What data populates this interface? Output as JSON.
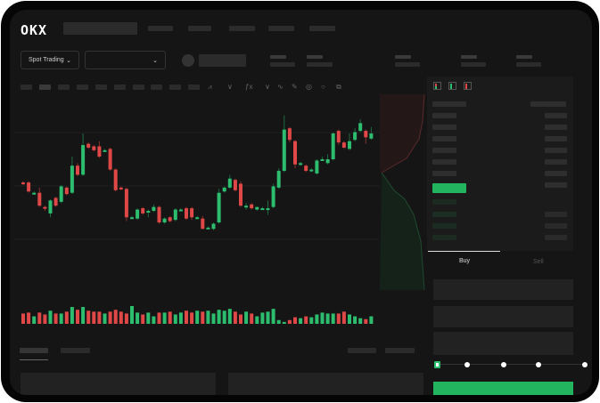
{
  "header": {
    "logo": "OKX"
  },
  "toolbar": {
    "trading_mode": "Spot Trading",
    "pair_select": "",
    "icons": [
      "line-tool-icon",
      "indicator-icon",
      "fx-icon",
      "wave-icon",
      "pencil-icon",
      "target-icon",
      "circle-icon",
      "share-icon"
    ]
  },
  "orderbook": {
    "view_icons": [
      "both-sides-icon",
      "bids-only-icon",
      "asks-only-icon"
    ]
  },
  "trade": {
    "tabs": [
      {
        "label": "Buy",
        "active": true
      },
      {
        "label": "Sell",
        "active": false
      }
    ],
    "slider_percent": 0
  },
  "colors": {
    "up": "#2dbd6e",
    "down": "#e04848",
    "background": "#151515",
    "placeholder": "#2b2b2b"
  },
  "chart_data": {
    "type": "candlestick",
    "ohlc": [
      [
        42,
        43,
        40,
        41
      ],
      [
        42,
        43,
        34,
        35
      ],
      [
        34,
        35,
        33,
        34
      ],
      [
        34,
        38,
        23,
        24
      ],
      [
        23,
        24,
        20,
        22
      ],
      [
        18,
        29,
        15,
        28
      ],
      [
        30,
        31,
        23,
        24
      ],
      [
        27,
        40,
        26,
        39
      ],
      [
        38,
        39,
        32,
        33
      ],
      [
        34,
        62,
        33,
        55
      ],
      [
        55,
        57,
        47,
        48
      ],
      [
        48,
        80,
        47,
        71
      ],
      [
        72,
        73,
        68,
        69
      ],
      [
        70,
        71,
        66,
        67
      ],
      [
        70,
        74,
        61,
        62
      ],
      [
        67,
        68,
        66,
        67
      ],
      [
        68,
        69,
        51,
        52
      ],
      [
        52,
        53,
        35,
        36
      ],
      [
        38,
        39,
        36,
        37
      ],
      [
        37,
        38,
        12,
        15
      ],
      [
        15,
        16,
        14,
        15
      ],
      [
        14,
        22,
        13,
        21
      ],
      [
        22,
        23,
        17,
        18
      ],
      [
        19,
        21,
        15,
        20
      ],
      [
        20,
        25,
        19,
        23
      ],
      [
        23,
        24,
        10,
        11
      ],
      [
        11,
        15,
        10,
        14
      ],
      [
        15,
        16,
        11,
        12
      ],
      [
        13,
        22,
        12,
        21
      ],
      [
        21,
        22,
        20,
        21
      ],
      [
        22,
        23,
        13,
        14
      ],
      [
        22,
        23,
        13,
        15
      ],
      [
        15,
        16,
        14,
        15
      ],
      [
        14,
        16,
        6,
        6
      ],
      [
        7,
        8,
        6,
        7
      ],
      [
        6,
        11,
        5,
        10
      ],
      [
        11,
        37,
        10,
        34
      ],
      [
        35,
        39,
        34,
        38
      ],
      [
        38,
        48,
        37,
        45
      ],
      [
        44,
        45,
        35,
        36
      ],
      [
        41,
        43,
        23,
        24
      ],
      [
        23,
        26,
        21,
        24
      ],
      [
        25,
        26,
        21,
        22
      ],
      [
        21,
        23,
        20,
        23
      ],
      [
        22,
        23,
        21,
        22
      ],
      [
        22,
        28,
        17,
        22
      ],
      [
        23,
        41,
        22,
        39
      ],
      [
        38,
        53,
        37,
        51
      ],
      [
        51,
        94,
        50,
        83
      ],
      [
        84,
        85,
        73,
        75
      ],
      [
        74,
        75,
        53,
        56
      ],
      [
        57,
        58,
        55,
        57
      ],
      [
        55,
        56,
        50,
        51
      ],
      [
        52,
        53,
        50,
        52
      ],
      [
        49,
        60,
        48,
        59
      ],
      [
        60,
        62,
        59,
        60
      ],
      [
        57,
        64,
        56,
        60
      ],
      [
        60,
        81,
        59,
        80
      ],
      [
        82,
        83,
        71,
        73
      ],
      [
        73,
        74,
        68,
        69
      ],
      [
        68,
        80,
        67,
        74
      ],
      [
        75,
        84,
        74,
        81
      ],
      [
        82,
        91,
        81,
        88
      ],
      [
        82,
        83,
        72,
        77
      ],
      [
        76,
        85,
        75,
        80
      ]
    ],
    "volume": [
      11,
      12,
      8,
      12,
      10,
      14,
      11,
      11,
      13,
      18,
      15,
      18,
      14,
      13,
      13,
      11,
      13,
      15,
      13,
      11,
      19,
      12,
      10,
      12,
      8,
      12,
      12,
      13,
      10,
      12,
      14,
      12,
      14,
      13,
      14,
      11,
      15,
      14,
      16,
      13,
      10,
      13,
      11,
      8,
      12,
      13,
      16,
      4,
      2,
      4,
      7,
      6,
      8,
      7,
      10,
      12,
      11,
      11,
      11,
      13,
      10,
      8,
      6,
      5,
      8
    ],
    "xlabel": "",
    "ylabel": ""
  }
}
